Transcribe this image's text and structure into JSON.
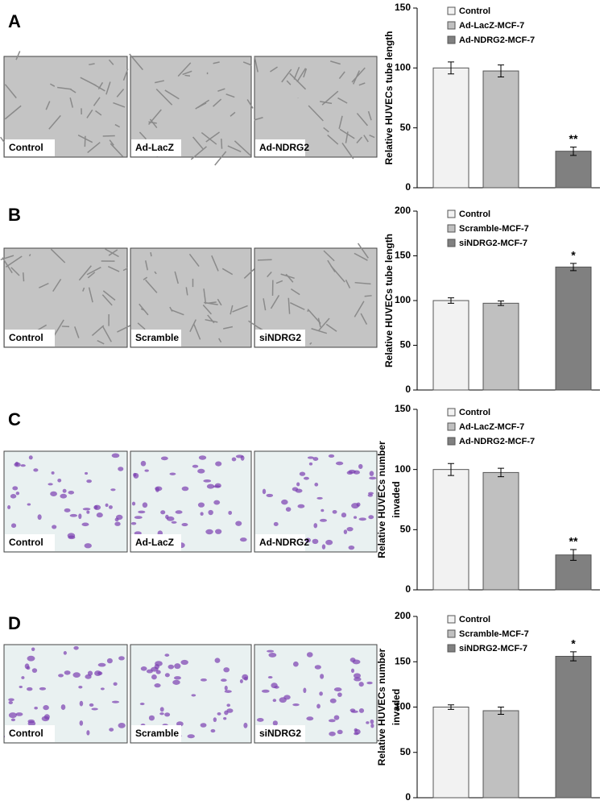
{
  "panels": [
    {
      "letter": "A",
      "images": [
        "Control",
        "Ad-LacZ",
        "Ad-NDRG2"
      ]
    },
    {
      "letter": "B",
      "images": [
        "Control",
        "Scramble",
        "siNDRG2"
      ]
    },
    {
      "letter": "C",
      "images": [
        "Control",
        "Ad-LacZ",
        "Ad-NDRG2"
      ]
    },
    {
      "letter": "D",
      "images": [
        "Control",
        "Scramble",
        "siNDRG2"
      ]
    }
  ],
  "chart_data": [
    {
      "type": "bar",
      "ylabel": [
        "Relative HUVECs tube length"
      ],
      "categories": [
        "Control",
        "Ad-LacZ-MCF-7",
        "Ad-NDRG2-MCF-7"
      ],
      "values": [
        100,
        97.5,
        30.5
      ],
      "errors": [
        5,
        5,
        3.5
      ],
      "annotations": [
        null,
        null,
        "**"
      ],
      "colors": [
        "#f2f2f2",
        "#c0c0c0",
        "#808080"
      ],
      "ylim": [
        0,
        150
      ],
      "yticks": [
        0,
        50,
        100,
        150
      ]
    },
    {
      "type": "bar",
      "ylabel": [
        "Relative HUVECs tube length"
      ],
      "categories": [
        "Control",
        "Scramble-MCF-7",
        "siNDRG2-MCF-7"
      ],
      "values": [
        100,
        97,
        137.5
      ],
      "errors": [
        3,
        2.5,
        4
      ],
      "annotations": [
        null,
        null,
        "*"
      ],
      "colors": [
        "#f2f2f2",
        "#c0c0c0",
        "#808080"
      ],
      "ylim": [
        0,
        200
      ],
      "yticks": [
        0,
        50,
        100,
        150,
        200
      ]
    },
    {
      "type": "bar",
      "ylabel": [
        "Relative HUVECs number",
        "invaded"
      ],
      "categories": [
        "Control",
        "Ad-LacZ-MCF-7",
        "Ad-NDRG2-MCF-7"
      ],
      "values": [
        100,
        97.5,
        29
      ],
      "errors": [
        5,
        3.5,
        4.5
      ],
      "annotations": [
        null,
        null,
        "**"
      ],
      "colors": [
        "#f2f2f2",
        "#c0c0c0",
        "#808080"
      ],
      "ylim": [
        0,
        150
      ],
      "yticks": [
        0,
        50,
        100,
        150
      ]
    },
    {
      "type": "bar",
      "ylabel": [
        "Relative HUVECs number",
        "invaded"
      ],
      "categories": [
        "Control",
        "Scramble-MCF-7",
        "siNDRG2-MCF-7"
      ],
      "values": [
        100,
        96,
        156
      ],
      "errors": [
        2.5,
        4,
        5
      ],
      "annotations": [
        null,
        null,
        "*"
      ],
      "colors": [
        "#f2f2f2",
        "#c0c0c0",
        "#808080"
      ],
      "ylim": [
        0,
        200
      ],
      "yticks": [
        0,
        50,
        100,
        150,
        200
      ]
    }
  ]
}
